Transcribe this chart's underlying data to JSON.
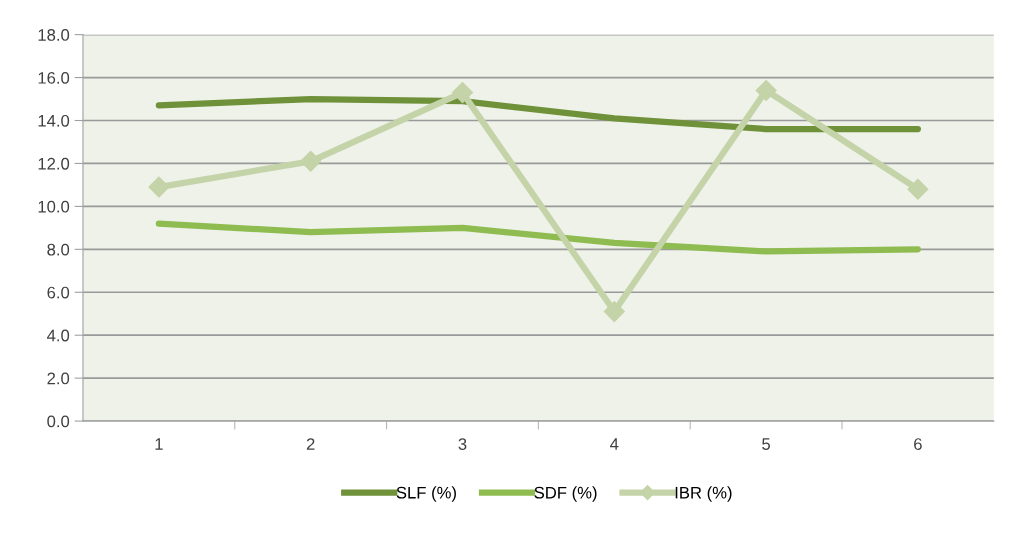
{
  "chart_data": {
    "type": "line",
    "categories": [
      "1",
      "2",
      "3",
      "4",
      "5",
      "6"
    ],
    "series": [
      {
        "name": "SLF (%)",
        "color": "#6f9139",
        "marker": "none",
        "values": [
          14.7,
          15.0,
          14.9,
          14.1,
          13.6,
          13.6
        ]
      },
      {
        "name": "SDF (%)",
        "color": "#8fbc50",
        "marker": "none",
        "values": [
          9.2,
          8.8,
          9.0,
          8.3,
          7.9,
          8.0
        ]
      },
      {
        "name": "IBR (%)",
        "color": "#c4d3a8",
        "marker": "diamond",
        "values": [
          10.9,
          12.1,
          15.3,
          5.1,
          15.4,
          10.8
        ]
      }
    ],
    "ylim": [
      0,
      18
    ],
    "yticks": [
      {
        "value": 0,
        "label": "0.0"
      },
      {
        "value": 2,
        "label": "2.0"
      },
      {
        "value": 4,
        "label": "4.0"
      },
      {
        "value": 6,
        "label": "6.0"
      },
      {
        "value": 8,
        "label": "8.0"
      },
      {
        "value": 10,
        "label": "10.0"
      },
      {
        "value": 12,
        "label": "12.0"
      },
      {
        "value": 14,
        "label": "14.0"
      },
      {
        "value": 16,
        "label": "16.0"
      },
      {
        "value": 18,
        "label": "18.0"
      }
    ],
    "grid": "y",
    "legend": "bottom",
    "line_style": "solid"
  }
}
